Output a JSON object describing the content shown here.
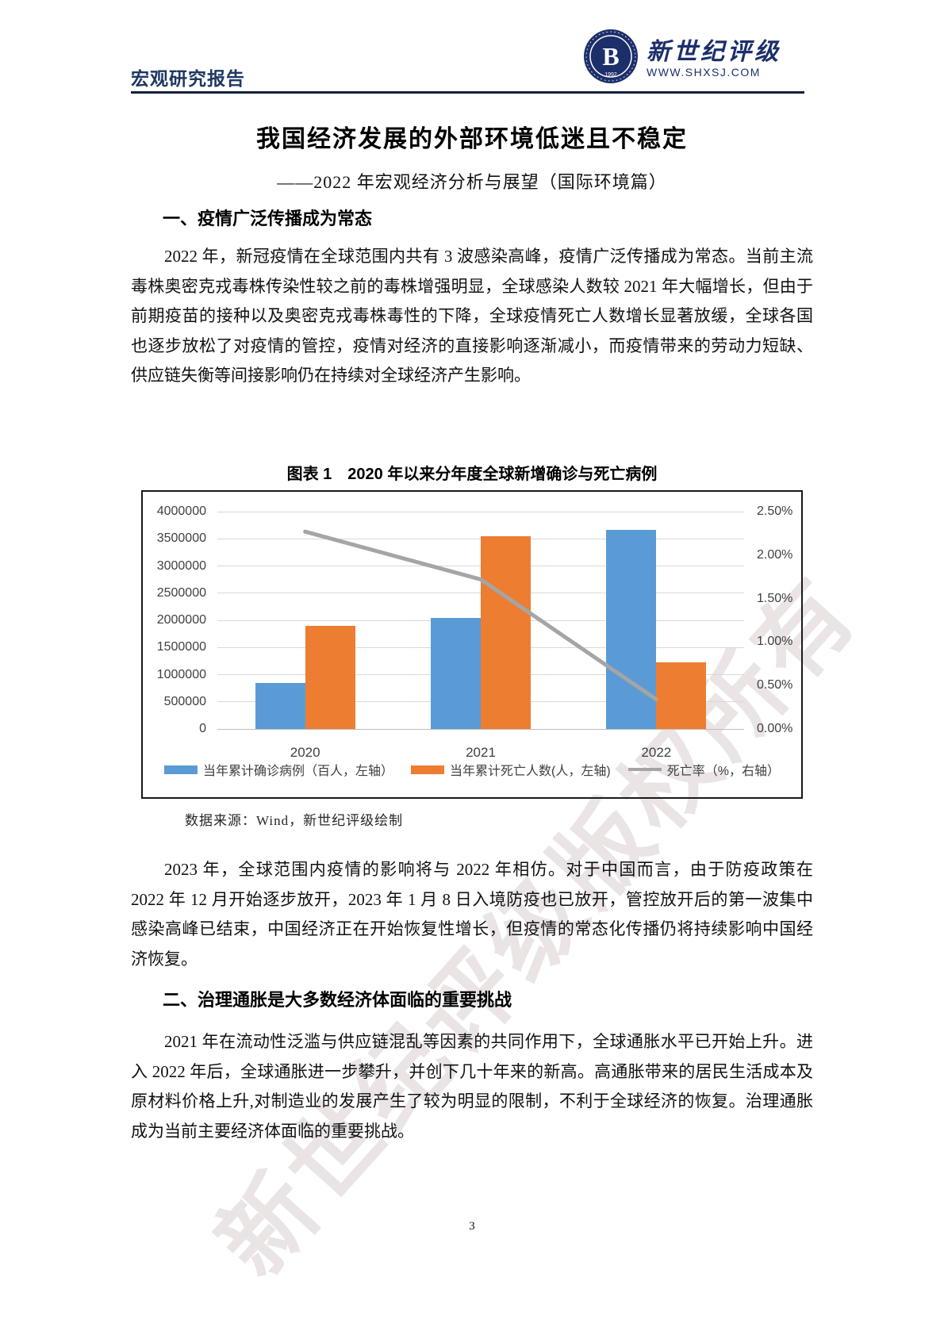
{
  "header": {
    "report_type": "宏观研究报告",
    "logo_name": "新世纪评级",
    "logo_url": "WWW.SHXSJ.COM",
    "logo_year": "1992",
    "brand_color": "#1F3864"
  },
  "title": "我国经济发展的外部环境低迷且不稳定",
  "subtitle": "——2022 年宏观经济分析与展望（国际环境篇）",
  "sections": [
    {
      "heading": "一、疫情广泛传播成为常态",
      "paragraphs": [
        "2022 年，新冠疫情在全球范围内共有 3 波感染高峰，疫情广泛传播成为常态。当前主流毒株奥密克戎毒株传染性较之前的毒株增强明显，全球感染人数较 2021 年大幅增长，但由于前期疫苗的接种以及奥密克戎毒株毒性的下降，全球疫情死亡人数增长显著放缓，全球各国也逐步放松了对疫情的管控，疫情对经济的直接影响逐渐减小，而疫情带来的劳动力短缺、供应链失衡等间接影响仍在持续对全球经济产生影响。",
        "2023 年，全球范围内疫情的影响将与 2022 年相仿。对于中国而言，由于防疫政策在 2022 年 12 月开始逐步放开，2023 年 1 月 8 日入境防疫也已放开，管控放开后的第一波集中感染高峰已结束，中国经济正在开始恢复性增长，但疫情的常态化传播仍将持续影响中国经济恢复。"
      ]
    },
    {
      "heading": "二、治理通胀是大多数经济体面临的重要挑战",
      "paragraphs": [
        "2021 年在流动性泛滥与供应链混乱等因素的共同作用下，全球通胀水平已开始上升。进入 2022 年后，全球通胀进一步攀升，并创下几十年来的新高。高通胀带来的居民生活成本及原材料价格上升,对制造业的发展产生了较为明显的限制，不利于全球经济的恢复。治理通胀成为当前主要经济体面临的重要挑战。"
      ]
    }
  ],
  "figure": {
    "title": "图表 1　2020 年以来分年度全球新增确诊与死亡病例",
    "source": "数据来源：Wind，新世纪评级绘制"
  },
  "watermark": "新世纪评级版权所有",
  "page_number": "3",
  "chart_data": {
    "type": "bar",
    "subtype": "combo-bar-line-dual-axis",
    "categories": [
      "2020",
      "2021",
      "2022"
    ],
    "series": [
      {
        "name": "当年累计确诊病例（百人，左轴）",
        "type": "bar",
        "axis": "left",
        "color": "#5B9BD5",
        "values": [
          840000,
          2050000,
          3670000
        ]
      },
      {
        "name": "当年累计死亡人数(人，左轴)",
        "type": "bar",
        "axis": "left",
        "color": "#ED7D31",
        "values": [
          1900000,
          3550000,
          1230000
        ]
      },
      {
        "name": "死亡率（%，右轴）",
        "type": "line",
        "axis": "right",
        "color": "#A5A5A5",
        "values": [
          2.27,
          1.72,
          0.34
        ]
      }
    ],
    "left_axis": {
      "min": 0,
      "max": 4000000,
      "tick_step": 500000,
      "tick_labels": [
        "0",
        "500000",
        "1000000",
        "1500000",
        "2000000",
        "2500000",
        "3000000",
        "3500000",
        "4000000"
      ]
    },
    "right_axis": {
      "min": 0,
      "max": 2.5,
      "tick_step": 0.5,
      "tick_labels": [
        "0.00%",
        "0.50%",
        "1.00%",
        "1.50%",
        "2.00%",
        "2.50%"
      ]
    },
    "grid": true,
    "legend_position": "bottom",
    "gridline_color": "#D9D9D9"
  }
}
